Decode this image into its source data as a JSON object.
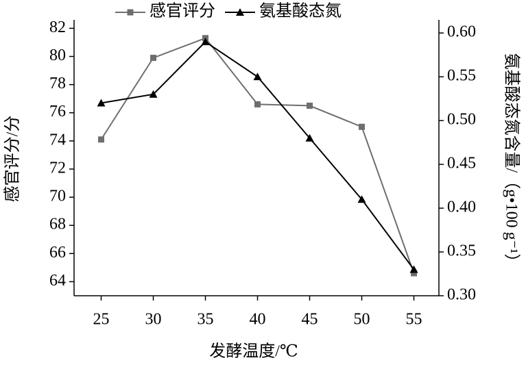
{
  "chart_data": {
    "type": "line",
    "x_label": "发酵温度/℃",
    "y_label": "感官评分/分",
    "y2_label": "氨基酸态氮含量/（g•100 g⁻¹）",
    "x": [
      25,
      30,
      35,
      40,
      45,
      50,
      55
    ],
    "xlim": [
      22.4,
      57.4
    ],
    "xticks": [
      25,
      30,
      35,
      40,
      45,
      50,
      55
    ],
    "ylim": [
      63,
      82.6
    ],
    "yticks": [
      64,
      66,
      68,
      70,
      72,
      74,
      76,
      78,
      80,
      82
    ],
    "y2lim": [
      0.3,
      0.615
    ],
    "y2ticks": [
      {
        "value": 0.3,
        "label": "0.30"
      },
      {
        "value": 0.35,
        "label": "0.35"
      },
      {
        "value": 0.4,
        "label": "0.40"
      },
      {
        "value": 0.45,
        "label": "0.45"
      },
      {
        "value": 0.5,
        "label": "0.50"
      },
      {
        "value": 0.55,
        "label": "0.55"
      },
      {
        "value": 0.6,
        "label": "0.60"
      }
    ],
    "legend": "top",
    "series": [
      {
        "name": "感官评分",
        "color": "#6e6e6e",
        "marker": "square",
        "values": [
          74.1,
          79.9,
          81.3,
          76.6,
          76.5,
          75.0,
          64.6
        ]
      },
      {
        "name": "氨基酸态氮",
        "color": "#000000",
        "marker": "triangle",
        "axis": "y2",
        "values": [
          0.52,
          0.53,
          0.59,
          0.55,
          0.48,
          0.41,
          0.33
        ]
      }
    ]
  }
}
